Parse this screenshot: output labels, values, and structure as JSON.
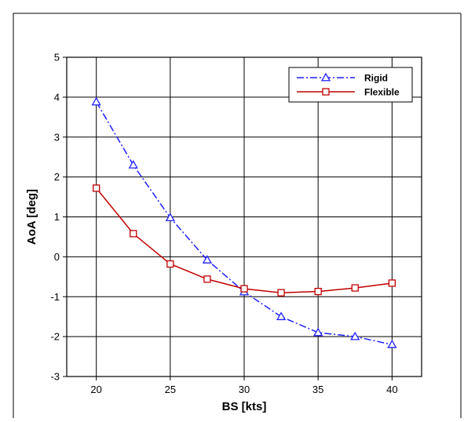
{
  "chart_data": {
    "type": "line",
    "title": "",
    "xlabel": "BS [kts]",
    "ylabel": "AoA [deg]",
    "xlim": [
      18,
      42
    ],
    "ylim": [
      -3,
      5
    ],
    "xticks": [
      20,
      25,
      30,
      35,
      40
    ],
    "yticks": [
      -3,
      -2,
      -1,
      0,
      1,
      2,
      3,
      4,
      5
    ],
    "grid": true,
    "legend_position": "top-right",
    "series": [
      {
        "name": "Rigid",
        "color": "#1f1fff",
        "line_style": "dash-dot",
        "marker": "triangle",
        "x": [
          20,
          22.5,
          25,
          27.5,
          30,
          32.5,
          35,
          37.5,
          40
        ],
        "y": [
          3.88,
          2.3,
          0.98,
          -0.08,
          -0.88,
          -1.5,
          -1.9,
          -2.0,
          -2.2
        ]
      },
      {
        "name": "Flexible",
        "color": "#c00000",
        "line_style": "solid",
        "marker": "square",
        "x": [
          20,
          22.5,
          25,
          27.5,
          30,
          32.5,
          35,
          37.5,
          40
        ],
        "y": [
          1.72,
          0.58,
          -0.18,
          -0.56,
          -0.8,
          -0.9,
          -0.87,
          -0.78,
          -0.66
        ]
      }
    ]
  }
}
